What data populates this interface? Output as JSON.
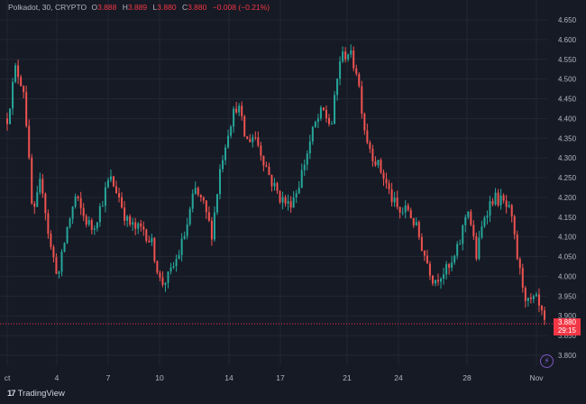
{
  "header": {
    "symbol": "Polkadot, 30, CRYPTO",
    "open_label": "O",
    "open": "3.888",
    "high_label": "H",
    "high": "3.889",
    "low_label": "L",
    "low": "3.880",
    "close_label": "C",
    "close": "3.880",
    "change": "−0.008 (−0.21%)"
  },
  "last_price_tag": {
    "price": "3.880",
    "countdown": "29:15"
  },
  "branding": {
    "logo_mark": "17",
    "name": "TradingView"
  },
  "icons": {
    "bolt": "lightning-icon"
  },
  "colors": {
    "up": "#26a69a",
    "down": "#ef5350",
    "background": "#161a25",
    "last_price": "#f23645"
  },
  "chart_data": {
    "type": "candlestick",
    "symbol": "Polkadot",
    "interval": "30",
    "x_tick_labels": [
      "ct",
      "4",
      "7",
      "10",
      "14",
      "17",
      "21",
      "24",
      "28",
      "Nov"
    ],
    "y_tick_labels": [
      "4.650",
      "4.600",
      "4.550",
      "4.500",
      "4.450",
      "4.400",
      "4.350",
      "4.300",
      "4.250",
      "4.200",
      "4.150",
      "4.100",
      "4.050",
      "4.000",
      "3.950",
      "3.900",
      "3.850",
      "3.800"
    ],
    "ylim": [
      3.77,
      4.68
    ],
    "grid": true,
    "last_price": 3.88,
    "path": [
      {
        "day": "Oct 2",
        "price": 4.4
      },
      {
        "day": "Oct 2",
        "price": 4.53
      },
      {
        "day": "Oct 2",
        "price": 4.47
      },
      {
        "day": "Oct 3",
        "price": 4.14
      },
      {
        "day": "Oct 3",
        "price": 4.25
      },
      {
        "day": "Oct 3",
        "price": 4.08
      },
      {
        "day": "Oct 4",
        "price": 4.0
      },
      {
        "day": "Oct 4",
        "price": 4.12
      },
      {
        "day": "Oct 5",
        "price": 4.2
      },
      {
        "day": "Oct 5",
        "price": 4.15
      },
      {
        "day": "Oct 6",
        "price": 4.12
      },
      {
        "day": "Oct 6",
        "price": 4.18
      },
      {
        "day": "Oct 7",
        "price": 4.25
      },
      {
        "day": "Oct 7",
        "price": 4.21
      },
      {
        "day": "Oct 8",
        "price": 4.14
      },
      {
        "day": "Oct 8",
        "price": 4.12
      },
      {
        "day": "Oct 9",
        "price": 4.12
      },
      {
        "day": "Oct 9",
        "price": 4.08
      },
      {
        "day": "Oct 10",
        "price": 3.98
      },
      {
        "day": "Oct 10",
        "price": 4.0
      },
      {
        "day": "Oct 11",
        "price": 4.05
      },
      {
        "day": "Oct 11",
        "price": 4.12
      },
      {
        "day": "Oct 12",
        "price": 4.22
      },
      {
        "day": "Oct 12",
        "price": 4.18
      },
      {
        "day": "Oct 13",
        "price": 4.11
      },
      {
        "day": "Oct 13",
        "price": 4.28
      },
      {
        "day": "Oct 14",
        "price": 4.38
      },
      {
        "day": "Oct 14",
        "price": 4.44
      },
      {
        "day": "Oct 15",
        "price": 4.34
      },
      {
        "day": "Oct 15",
        "price": 4.36
      },
      {
        "day": "Oct 16",
        "price": 4.3
      },
      {
        "day": "Oct 16",
        "price": 4.24
      },
      {
        "day": "Oct 17",
        "price": 4.2
      },
      {
        "day": "Oct 17",
        "price": 4.18
      },
      {
        "day": "Oct 18",
        "price": 4.22
      },
      {
        "day": "Oct 18",
        "price": 4.3
      },
      {
        "day": "Oct 19",
        "price": 4.38
      },
      {
        "day": "Oct 19",
        "price": 4.42
      },
      {
        "day": "Oct 20",
        "price": 4.38
      },
      {
        "day": "Oct 20",
        "price": 4.55
      },
      {
        "day": "Oct 21",
        "price": 4.57
      },
      {
        "day": "Oct 21",
        "price": 4.52
      },
      {
        "day": "Oct 22",
        "price": 4.36
      },
      {
        "day": "Oct 22",
        "price": 4.3
      },
      {
        "day": "Oct 23",
        "price": 4.26
      },
      {
        "day": "Oct 23",
        "price": 4.2
      },
      {
        "day": "Oct 24",
        "price": 4.16
      },
      {
        "day": "Oct 24",
        "price": 4.17
      },
      {
        "day": "Oct 25",
        "price": 4.12
      },
      {
        "day": "Oct 25",
        "price": 4.05
      },
      {
        "day": "Oct 26",
        "price": 3.99
      },
      {
        "day": "Oct 26",
        "price": 4.01
      },
      {
        "day": "Oct 27",
        "price": 4.02
      },
      {
        "day": "Oct 27",
        "price": 4.08
      },
      {
        "day": "Oct 28",
        "price": 4.18
      },
      {
        "day": "Oct 28",
        "price": 4.05
      },
      {
        "day": "Oct 29",
        "price": 4.16
      },
      {
        "day": "Oct 29",
        "price": 4.2
      },
      {
        "day": "Oct 30",
        "price": 4.19
      },
      {
        "day": "Oct 30",
        "price": 4.16
      },
      {
        "day": "Oct 31",
        "price": 4.02
      },
      {
        "day": "Oct 31",
        "price": 3.93
      },
      {
        "day": "Nov 1",
        "price": 3.94
      },
      {
        "day": "Nov 1",
        "price": 3.88
      }
    ]
  }
}
